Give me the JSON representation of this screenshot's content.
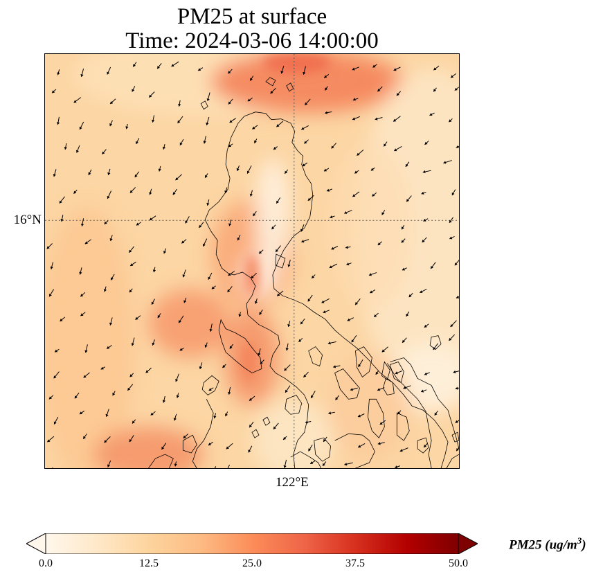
{
  "title_line1": "PM25 at surface",
  "title_line2": "Time: 2024-03-06 14:00:00",
  "lat_label": "16°N",
  "lon_label": "122°E",
  "colorbar": {
    "label_text": "PM25 (ug/m",
    "label_sup": "3",
    "label_close": ")",
    "ticks": [
      "0.0",
      "12.5",
      "25.0",
      "37.5",
      "50.0"
    ],
    "min": 0,
    "max": 50,
    "extend": "both",
    "colormap": "OrRd",
    "colors": [
      "#fff7ec",
      "#fee8c8",
      "#fdd49e",
      "#fdbb84",
      "#fc8d59",
      "#ef6548",
      "#d7301f",
      "#b30000",
      "#7f0000"
    ]
  },
  "map": {
    "region": "Luzon, Philippines",
    "gridlines": "dotted",
    "layers": [
      "pm25-field",
      "coastlines",
      "wind-arrows"
    ]
  }
}
